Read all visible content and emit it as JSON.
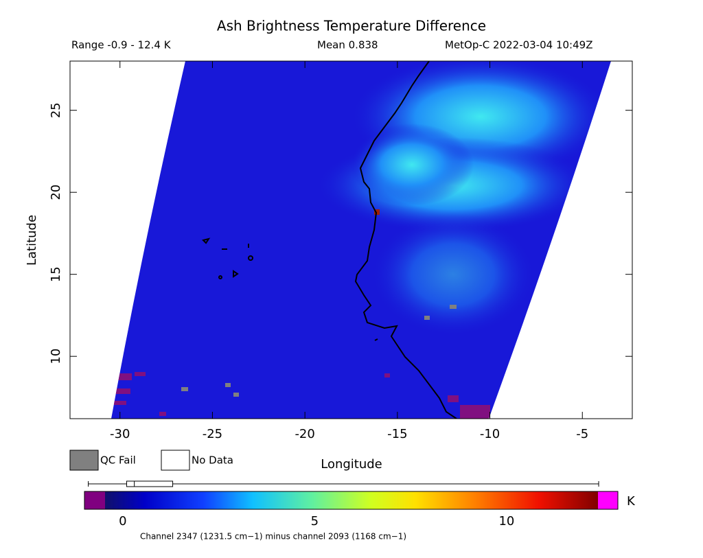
{
  "chart_data": {
    "type": "map",
    "title": "Ash Brightness Temperature Difference",
    "range_label": "Range -0.9 - 12.4 K",
    "mean_label": "Mean 0.838",
    "source_label": "MetOp-C 2022-03-04 10:49Z",
    "x_label": "Longitude",
    "y_label": "Latitude",
    "xlim": [
      -32.7,
      -2.3
    ],
    "ylim": [
      6.2,
      28.0
    ],
    "xticks": [
      -30,
      -25,
      -20,
      -15,
      -10,
      -5
    ],
    "yticks": [
      10,
      15,
      20,
      25
    ],
    "legend": [
      {
        "name": "QC Fail",
        "color": "#808080"
      },
      {
        "name": "No Data",
        "color": "#ffffff"
      }
    ],
    "colorbar": {
      "lim": [
        -1.0,
        12.9
      ],
      "ticks": [
        0,
        5,
        10
      ],
      "unit": "K",
      "stats": {
        "min": -0.9,
        "q1": 0.1,
        "median": 0.3,
        "q3": 1.3,
        "max": 12.4
      }
    },
    "caption": "Channel 2347 (1231.5 cm−1) minus channel 2093 (1168 cm−1)"
  }
}
